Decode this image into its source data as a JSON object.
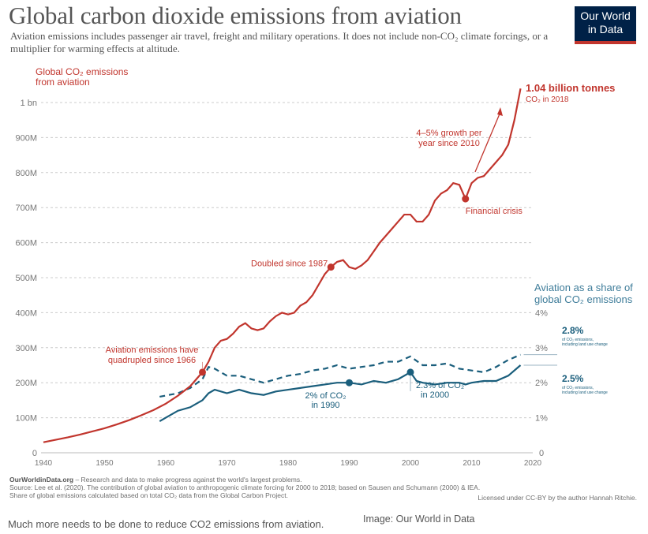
{
  "header": {
    "title": "Global carbon dioxide emissions from aviation",
    "subtitle": "Aviation emissions includes passenger air travel, freight and military operations. It does not include non-CO₂ climate forcings, or a multiplier for warming effects at altitude.",
    "logo_line1": "Our World",
    "logo_line2": "in Data"
  },
  "footer": {
    "line1_bold": "OurWorldinData.org",
    "line1_rest": " – Research and data to make progress against the world's largest problems.",
    "line2": "Source: Lee et al. (2020). The contribution of global aviation to anthropogenic climate forcing for 2000 to 2018; based on Sausen and Schumann (2000) & IEA.",
    "line3": "Share of global emissions calculated based on total CO₂ data from the Global Carbon Project.",
    "license": "Licensed under CC-BY by the author Hannah Ritchie."
  },
  "caption": "Much more needs to be done to reduce CO2 emissions from aviation.",
  "credit": "Image: Our World in Data",
  "colors": {
    "emissions": "#c1352d",
    "share": "#1a5e7c",
    "grid": "#cccccc",
    "text": "#555555",
    "muted": "#777777"
  },
  "chart_data": [
    {
      "type": "line",
      "title": "Global CO₂ emissions from aviation",
      "ylabel": "Global CO₂ emissions from aviation",
      "ylim": [
        0,
        1050
      ],
      "xlim": [
        1940,
        2020
      ],
      "grid": true,
      "y_ticks": [
        0,
        100,
        200,
        300,
        400,
        500,
        600,
        700,
        800,
        900,
        1000
      ],
      "y_tick_labels": [
        "0",
        "100M",
        "200M",
        "300M",
        "400M",
        "500M",
        "600M",
        "700M",
        "800M",
        "900M",
        "1 bn"
      ],
      "x_ticks": [
        1940,
        1950,
        1960,
        1970,
        1980,
        1990,
        2000,
        2010,
        2020
      ],
      "series": [
        {
          "x": [
            1940,
            1942,
            1944,
            1946,
            1948,
            1950,
            1952,
            1954,
            1956,
            1958,
            1960,
            1962,
            1964,
            1966,
            1967,
            1968,
            1969,
            1970,
            1971,
            1972,
            1973,
            1974,
            1975,
            1976,
            1977,
            1978,
            1979,
            1980,
            1981,
            1982,
            1983,
            1984,
            1985,
            1986,
            1987,
            1988,
            1989,
            1990,
            1991,
            1992,
            1993,
            1994,
            1995,
            1996,
            1997,
            1998,
            1999,
            2000,
            2001,
            2002,
            2003,
            2004,
            2005,
            2006,
            2007,
            2008,
            2009,
            2010,
            2011,
            2012,
            2013,
            2014,
            2015,
            2016,
            2017,
            2018
          ],
          "values": [
            30,
            37,
            44,
            52,
            61,
            70,
            81,
            93,
            107,
            122,
            140,
            163,
            190,
            230,
            260,
            300,
            320,
            325,
            340,
            360,
            370,
            355,
            350,
            355,
            375,
            390,
            400,
            395,
            400,
            420,
            430,
            450,
            480,
            510,
            530,
            545,
            550,
            530,
            525,
            535,
            550,
            575,
            600,
            620,
            640,
            660,
            680,
            680,
            660,
            660,
            680,
            720,
            740,
            750,
            770,
            765,
            725,
            770,
            785,
            790,
            810,
            830,
            850,
            880,
            950,
            1040
          ]
        }
      ],
      "annotations": [
        {
          "text_line1": "Aviation emissions have",
          "text_line2": "quadrupled since 1966",
          "x": 1966,
          "y": 230
        },
        {
          "text": "Doubled since 1987",
          "x": 1987,
          "y": 530
        },
        {
          "text": "Financial crisis",
          "x": 2009,
          "y": 725
        },
        {
          "text_line1": "4–5% growth per",
          "text_line2": "year since 2010"
        },
        {
          "text": "1.04 billion tonnes",
          "sub": "CO₂ in 2018"
        }
      ]
    },
    {
      "type": "line",
      "title": "Aviation as a share of global CO₂ emissions",
      "title_line1": "Aviation as a share of",
      "title_line2": "global CO₂ emissions",
      "ylim": [
        0,
        4.5
      ],
      "y_ticks": [
        0,
        1,
        2,
        3,
        4
      ],
      "y_tick_labels": [
        "0",
        "1%",
        "2%",
        "3%",
        "4%"
      ],
      "series": [
        {
          "name_line1": "2.5%",
          "name_line2": "of CO₂ emissions,",
          "name_line3": "including land use change",
          "style": "solid",
          "x": [
            1959,
            1960,
            1962,
            1964,
            1966,
            1967,
            1968,
            1970,
            1972,
            1974,
            1976,
            1978,
            1980,
            1982,
            1984,
            1986,
            1988,
            1990,
            1992,
            1994,
            1996,
            1998,
            2000,
            2001,
            2002,
            2004,
            2006,
            2008,
            2009,
            2010,
            2012,
            2014,
            2016,
            2018
          ],
          "values": [
            0.9,
            1.0,
            1.2,
            1.3,
            1.5,
            1.7,
            1.8,
            1.7,
            1.8,
            1.7,
            1.65,
            1.75,
            1.8,
            1.85,
            1.9,
            1.95,
            2.0,
            2.0,
            1.95,
            2.05,
            2.0,
            2.1,
            2.3,
            2.05,
            2.0,
            1.95,
            2.0,
            2.0,
            1.95,
            2.0,
            2.05,
            2.05,
            2.2,
            2.5
          ]
        },
        {
          "name_line1": "2.8%",
          "name_line2": "of CO₂ emissions,",
          "name_line3": "including land use change",
          "style": "dashed",
          "x": [
            1959,
            1962,
            1964,
            1966,
            1967,
            1968,
            1970,
            1972,
            1974,
            1976,
            1978,
            1980,
            1982,
            1984,
            1986,
            1988,
            1990,
            1992,
            1994,
            1996,
            1998,
            2000,
            2002,
            2004,
            2006,
            2008,
            2010,
            2012,
            2014,
            2016,
            2018
          ],
          "values": [
            1.6,
            1.7,
            1.85,
            2.1,
            2.45,
            2.4,
            2.2,
            2.2,
            2.1,
            2.0,
            2.1,
            2.2,
            2.25,
            2.35,
            2.4,
            2.5,
            2.4,
            2.45,
            2.5,
            2.6,
            2.6,
            2.75,
            2.5,
            2.5,
            2.55,
            2.4,
            2.35,
            2.3,
            2.45,
            2.65,
            2.8
          ]
        }
      ],
      "annotations": [
        {
          "text_line1": "2% of CO₂",
          "text_line2": "in 1990",
          "x": 1990,
          "y": 2.0
        },
        {
          "text_line1": "2.3% of CO₂",
          "text_line2": "in 2000",
          "x": 2000,
          "y": 2.3
        }
      ]
    }
  ]
}
